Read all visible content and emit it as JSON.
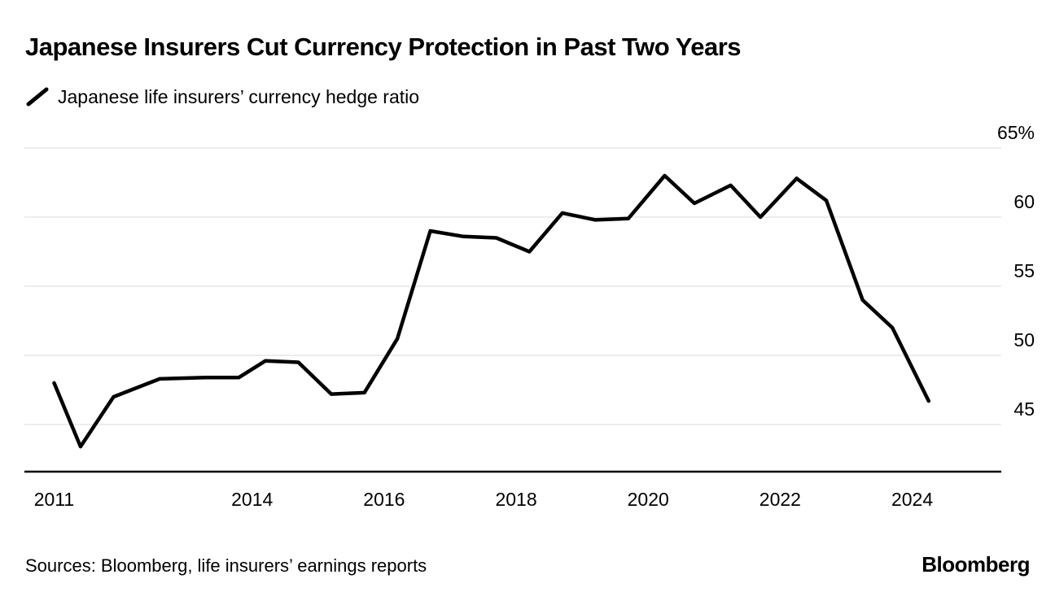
{
  "header": {
    "title": "Japanese Insurers Cut Currency Protection in Past Two Years",
    "legend_label": "Japanese life insurers’ currency hedge ratio"
  },
  "footer": {
    "sources": "Sources: Bloomberg, life insurers’ earnings reports",
    "brand": "Bloomberg"
  },
  "chart_data": {
    "type": "line",
    "title": "Japanese Insurers Cut Currency Protection in Past Two Years",
    "legend": "Japanese life insurers’ currency hedge ratio",
    "series": [
      {
        "name": "Japanese life insurers’ currency hedge ratio",
        "x": [
          2011.0,
          2011.4,
          2011.9,
          2012.6,
          2013.3,
          2013.8,
          2014.2,
          2014.7,
          2015.2,
          2015.7,
          2016.2,
          2016.7,
          2017.2,
          2017.7,
          2018.2,
          2018.7,
          2019.2,
          2019.7,
          2020.25,
          2020.7,
          2021.25,
          2021.7,
          2022.25,
          2022.7,
          2023.25,
          2023.7,
          2024.25
        ],
        "values": [
          48,
          43.4,
          47,
          48.3,
          48.4,
          48.4,
          49.6,
          49.5,
          47.2,
          47.3,
          51.2,
          59,
          58.6,
          58.5,
          57.5,
          60.3,
          59.8,
          59.9,
          63,
          61,
          62.3,
          60,
          62.8,
          61.2,
          54,
          52,
          46.7
        ]
      }
    ],
    "ylabel": "",
    "xlabel": "",
    "ylabel_ticks": [
      "65%",
      "60",
      "55",
      "50",
      "45"
    ],
    "ytick_values": [
      65,
      60,
      55,
      50,
      45
    ],
    "xtick_values": [
      2011,
      2014,
      2016,
      2018,
      2020,
      2022,
      2024
    ],
    "xtick_labels": [
      "2011",
      "2014",
      "2016",
      "2018",
      "2020",
      "2022",
      "2024"
    ],
    "xlim": [
      2010.55,
      2025.35
    ],
    "ylim": [
      41.5,
      67
    ],
    "grid": true,
    "legend_position": "top-left",
    "line_color": "#000000",
    "grid_color": "#d9d9d9",
    "axis_color": "#000000"
  }
}
